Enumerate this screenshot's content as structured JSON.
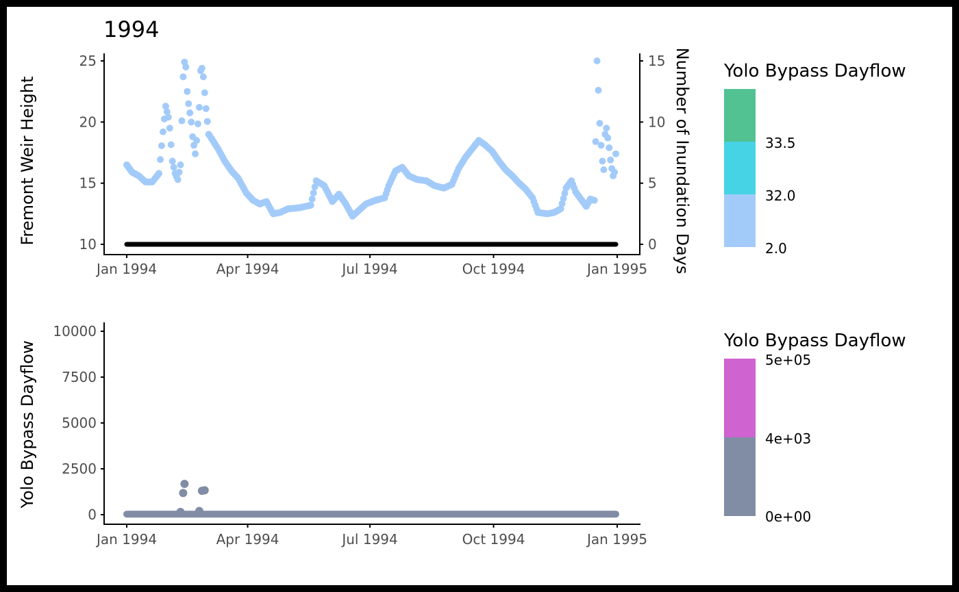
{
  "chart_data": [
    {
      "type": "scatter",
      "title": "1994",
      "ylabel": "Fremont Weir Height",
      "y2label": "Number of Inundation Days",
      "ylim": [
        9.5,
        25.5
      ],
      "y_ticks": [
        10,
        15,
        20,
        25
      ],
      "y2_ticks": [
        0,
        5,
        10,
        15
      ],
      "x_ticks": [
        "Jan 1994",
        "Apr 1994",
        "Jul 1994",
        "Oct 1994",
        "Jan 1995"
      ],
      "x_tick_dates": [
        "1994-01-01",
        "1994-04-01",
        "1994-07-01",
        "1994-10-01",
        "1995-01-01"
      ],
      "legend": {
        "title": "Yolo Bypass Dayflow",
        "labels": [
          "33.5",
          "32.0",
          "2.0"
        ],
        "colors": [
          "#52c292",
          "#46d3e6",
          "#a3cbfa"
        ]
      },
      "series": [
        {
          "color": "#a3cbfa",
          "points": [
            [
              "1994-01-01",
              16.5
            ],
            [
              "1994-01-05",
              15.9
            ],
            [
              "1994-01-10",
              15.6
            ],
            [
              "1994-01-15",
              15.1
            ],
            [
              "1994-01-20",
              15.1
            ],
            [
              "1994-01-25",
              15.8
            ],
            [
              "1994-01-28",
              19.2
            ],
            [
              "1994-01-30",
              21.3
            ],
            [
              "1994-02-01",
              20.4
            ],
            [
              "1994-02-02",
              19.5
            ],
            [
              "1994-02-04",
              16.8
            ],
            [
              "1994-02-06",
              15.8
            ],
            [
              "1994-02-08",
              15.3
            ],
            [
              "1994-02-10",
              16.5
            ],
            [
              "1994-02-12",
              23.7
            ],
            [
              "1994-02-13",
              24.9
            ],
            [
              "1994-02-14",
              24.5
            ],
            [
              "1994-02-15",
              22.5
            ],
            [
              "1994-02-16",
              21.5
            ],
            [
              "1994-02-18",
              20.0
            ],
            [
              "1994-02-19",
              18.8
            ],
            [
              "1994-02-21",
              17.4
            ],
            [
              "1994-02-22",
              18.5
            ],
            [
              "1994-02-24",
              21.2
            ],
            [
              "1994-02-25",
              24.2
            ],
            [
              "1994-02-26",
              24.4
            ],
            [
              "1994-02-27",
              23.7
            ],
            [
              "1994-02-28",
              22.4
            ],
            [
              "1994-03-01",
              21.1
            ],
            [
              "1994-03-03",
              19.0
            ],
            [
              "1994-03-06",
              18.5
            ],
            [
              "1994-03-10",
              17.8
            ],
            [
              "1994-03-15",
              16.8
            ],
            [
              "1994-03-20",
              16.0
            ],
            [
              "1994-03-25",
              15.4
            ],
            [
              "1994-03-31",
              14.2
            ],
            [
              "1994-04-05",
              13.6
            ],
            [
              "1994-04-10",
              13.3
            ],
            [
              "1994-04-15",
              13.5
            ],
            [
              "1994-04-20",
              12.5
            ],
            [
              "1994-04-25",
              12.6
            ],
            [
              "1994-05-01",
              12.9
            ],
            [
              "1994-05-10",
              13.0
            ],
            [
              "1994-05-18",
              13.2
            ],
            [
              "1994-05-22",
              15.2
            ],
            [
              "1994-05-28",
              14.8
            ],
            [
              "1994-06-03",
              13.5
            ],
            [
              "1994-06-08",
              14.1
            ],
            [
              "1994-06-13",
              13.3
            ],
            [
              "1994-06-18",
              12.3
            ],
            [
              "1994-06-23",
              12.8
            ],
            [
              "1994-06-28",
              13.3
            ],
            [
              "1994-07-05",
              13.6
            ],
            [
              "1994-07-12",
              13.8
            ],
            [
              "1994-07-15",
              14.8
            ],
            [
              "1994-07-20",
              16.0
            ],
            [
              "1994-07-25",
              16.3
            ],
            [
              "1994-07-30",
              15.6
            ],
            [
              "1994-08-05",
              15.3
            ],
            [
              "1994-08-12",
              15.2
            ],
            [
              "1994-08-18",
              14.8
            ],
            [
              "1994-08-25",
              14.6
            ],
            [
              "1994-08-31",
              14.9
            ],
            [
              "1994-09-05",
              16.2
            ],
            [
              "1994-09-10",
              17.1
            ],
            [
              "1994-09-15",
              17.8
            ],
            [
              "1994-09-20",
              18.5
            ],
            [
              "1994-09-25",
              18.1
            ],
            [
              "1994-09-30",
              17.6
            ],
            [
              "1994-10-05",
              16.8
            ],
            [
              "1994-10-10",
              16.1
            ],
            [
              "1994-10-15",
              15.6
            ],
            [
              "1994-10-20",
              15.0
            ],
            [
              "1994-10-25",
              14.5
            ],
            [
              "1994-10-30",
              13.8
            ],
            [
              "1994-11-03",
              12.6
            ],
            [
              "1994-11-10",
              12.5
            ],
            [
              "1994-11-15",
              12.6
            ],
            [
              "1994-11-20",
              12.9
            ],
            [
              "1994-11-24",
              14.6
            ],
            [
              "1994-11-28",
              15.2
            ],
            [
              "1994-12-01",
              14.3
            ],
            [
              "1994-12-05",
              13.7
            ],
            [
              "1994-12-09",
              13.1
            ],
            [
              "1994-12-12",
              13.7
            ],
            [
              "1994-12-15",
              13.6
            ],
            [
              "1994-12-16",
              18.4
            ],
            [
              "1994-12-17",
              25.0
            ],
            [
              "1994-12-18",
              22.6
            ],
            [
              "1994-12-19",
              19.9
            ],
            [
              "1994-12-20",
              18.1
            ],
            [
              "1994-12-21",
              16.8
            ],
            [
              "1994-12-22",
              16.1
            ],
            [
              "1994-12-23",
              19.0
            ],
            [
              "1994-12-24",
              19.5
            ],
            [
              "1994-12-25",
              18.7
            ],
            [
              "1994-12-26",
              17.9
            ],
            [
              "1994-12-27",
              16.9
            ],
            [
              "1994-12-28",
              16.2
            ],
            [
              "1994-12-29",
              15.6
            ],
            [
              "1994-12-30",
              15.9
            ],
            [
              "1994-12-31",
              17.4
            ]
          ]
        },
        {
          "color": "#000000",
          "y_axis": "right",
          "x_range": [
            "1994-01-01",
            "1994-12-31"
          ],
          "value": 0
        }
      ]
    },
    {
      "type": "scatter",
      "ylabel": "Yolo Bypass Dayflow",
      "ylim": [
        -500,
        10500
      ],
      "y_ticks": [
        0,
        2500,
        5000,
        7500,
        10000
      ],
      "x_ticks": [
        "Jan 1994",
        "Apr 1994",
        "Jul 1994",
        "Oct 1994",
        "Jan 1995"
      ],
      "x_tick_dates": [
        "1994-01-01",
        "1994-04-01",
        "1994-07-01",
        "1994-10-01",
        "1995-01-01"
      ],
      "legend": {
        "title": "Yolo Bypass Dayflow",
        "labels": [
          "5e+05",
          "4e+03",
          "0e+00"
        ],
        "colors": [
          "#cf63cf",
          "#818ca5",
          "#818ca5"
        ]
      },
      "series": [
        {
          "color": "#818ca5",
          "baseline": {
            "x_range": [
              "1994-01-01",
              "1994-12-31"
            ],
            "value": 30
          },
          "points": [
            [
              "1994-02-10",
              150
            ],
            [
              "1994-02-12",
              1180
            ],
            [
              "1994-02-13",
              1680
            ],
            [
              "1994-02-24",
              200
            ],
            [
              "1994-02-26",
              1300
            ],
            [
              "1994-02-28",
              1330
            ]
          ]
        }
      ]
    }
  ]
}
